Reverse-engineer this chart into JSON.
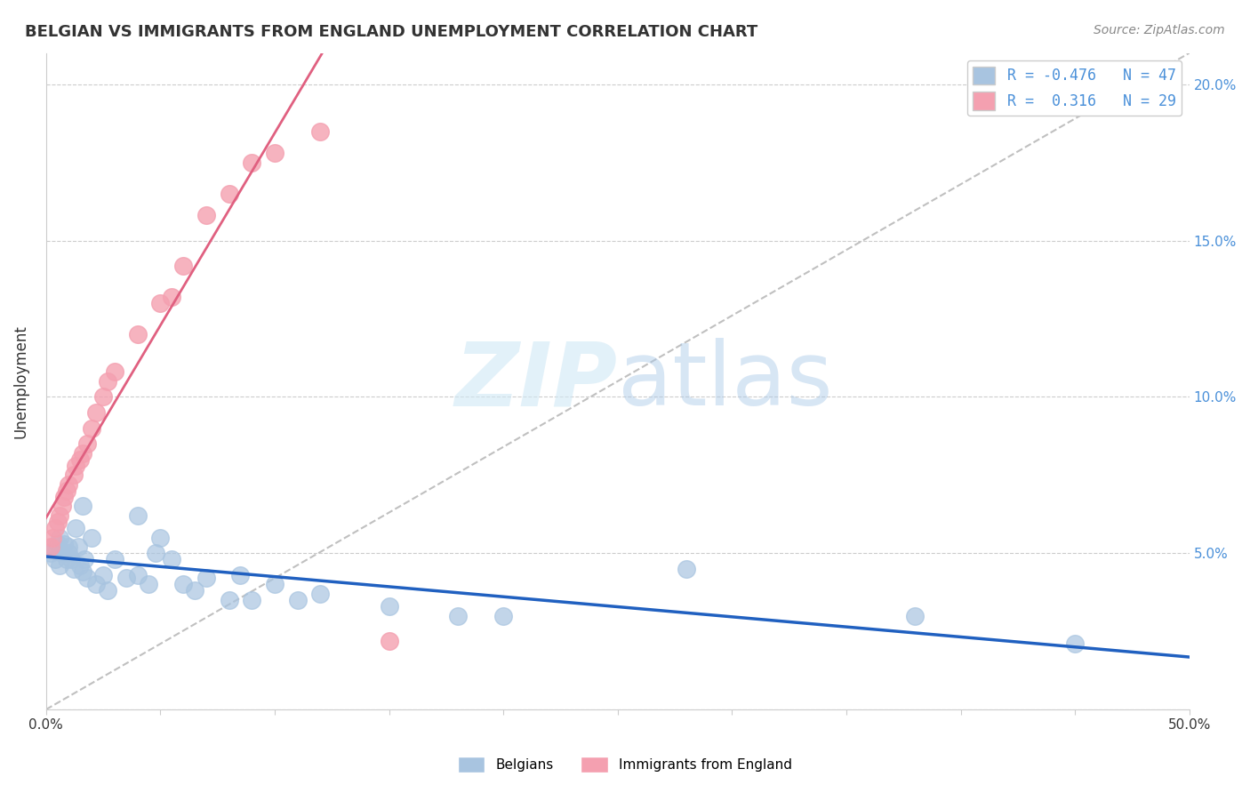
{
  "title": "BELGIAN VS IMMIGRANTS FROM ENGLAND UNEMPLOYMENT CORRELATION CHART",
  "source": "Source: ZipAtlas.com",
  "ylabel": "Unemployment",
  "xlim": [
    0.0,
    0.5
  ],
  "ylim": [
    0.0,
    0.21
  ],
  "xticks": [
    0.0,
    0.05,
    0.1,
    0.15,
    0.2,
    0.25,
    0.3,
    0.35,
    0.4,
    0.45,
    0.5
  ],
  "yticks": [
    0.0,
    0.05,
    0.1,
    0.15,
    0.2
  ],
  "ytick_labels_right": [
    "",
    "5.0%",
    "10.0%",
    "15.0%",
    "20.0%"
  ],
  "legend_blue_r": "-0.476",
  "legend_blue_n": "47",
  "legend_pink_r": "0.316",
  "legend_pink_n": "29",
  "blue_color": "#a8c4e0",
  "pink_color": "#f4a0b0",
  "blue_line_color": "#2060c0",
  "pink_line_color": "#e06080",
  "ref_line_color": "#c0c0c0",
  "grid_color": "#cccccc",
  "belgians_x": [
    0.002,
    0.003,
    0.004,
    0.005,
    0.006,
    0.006,
    0.007,
    0.008,
    0.009,
    0.01,
    0.01,
    0.011,
    0.012,
    0.013,
    0.014,
    0.015,
    0.016,
    0.016,
    0.017,
    0.018,
    0.02,
    0.022,
    0.025,
    0.027,
    0.03,
    0.035,
    0.04,
    0.04,
    0.045,
    0.048,
    0.05,
    0.055,
    0.06,
    0.065,
    0.07,
    0.08,
    0.085,
    0.09,
    0.1,
    0.11,
    0.12,
    0.15,
    0.18,
    0.2,
    0.28,
    0.38,
    0.45
  ],
  "belgians_y": [
    0.05,
    0.052,
    0.048,
    0.053,
    0.055,
    0.046,
    0.05,
    0.053,
    0.048,
    0.05,
    0.052,
    0.048,
    0.045,
    0.058,
    0.052,
    0.046,
    0.065,
    0.044,
    0.048,
    0.042,
    0.055,
    0.04,
    0.043,
    0.038,
    0.048,
    0.042,
    0.062,
    0.043,
    0.04,
    0.05,
    0.055,
    0.048,
    0.04,
    0.038,
    0.042,
    0.035,
    0.043,
    0.035,
    0.04,
    0.035,
    0.037,
    0.033,
    0.03,
    0.03,
    0.045,
    0.03,
    0.021
  ],
  "england_x": [
    0.002,
    0.003,
    0.004,
    0.005,
    0.006,
    0.007,
    0.008,
    0.009,
    0.01,
    0.012,
    0.013,
    0.015,
    0.016,
    0.018,
    0.02,
    0.022,
    0.025,
    0.027,
    0.03,
    0.04,
    0.05,
    0.055,
    0.06,
    0.07,
    0.08,
    0.09,
    0.1,
    0.12,
    0.15
  ],
  "england_y": [
    0.052,
    0.055,
    0.058,
    0.06,
    0.062,
    0.065,
    0.068,
    0.07,
    0.072,
    0.075,
    0.078,
    0.08,
    0.082,
    0.085,
    0.09,
    0.095,
    0.1,
    0.105,
    0.108,
    0.12,
    0.13,
    0.132,
    0.142,
    0.158,
    0.165,
    0.175,
    0.178,
    0.185,
    0.022
  ]
}
